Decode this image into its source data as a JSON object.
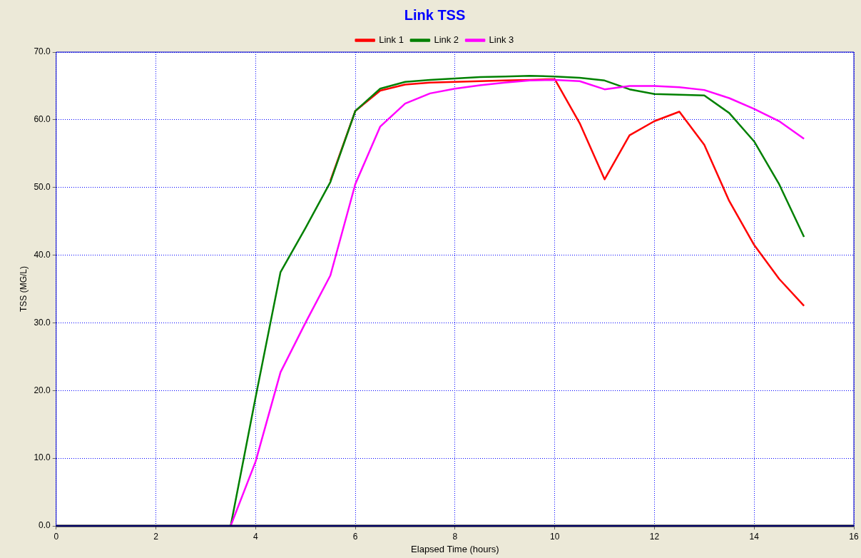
{
  "chart_data": {
    "type": "line",
    "title": "Link TSS",
    "xlabel": "Elapsed Time (hours)",
    "ylabel": "TSS (MG/L)",
    "series": [
      {
        "name": "Link 1",
        "color": "#ff0000",
        "x": [
          5.5,
          6,
          6.5,
          7,
          7.5,
          8,
          8.5,
          9,
          9.5,
          10,
          10.5,
          11,
          11.5,
          12,
          12.5,
          13,
          13.5,
          14,
          14.5,
          15
        ],
        "values": [
          51,
          61.3,
          64.3,
          65.2,
          65.5,
          65.6,
          65.7,
          65.8,
          65.9,
          66,
          59.5,
          51.2,
          57.7,
          59.8,
          61.2,
          56.3,
          48,
          41.5,
          36.5,
          32.5
        ]
      },
      {
        "name": "Link 2",
        "color": "#008000",
        "x": [
          3.5,
          4,
          4.5,
          5,
          5.5,
          6,
          6.5,
          7,
          7.5,
          8,
          8.5,
          9,
          9.5,
          10,
          10.5,
          11,
          11.5,
          12,
          12.5,
          13,
          13.5,
          14,
          14.5,
          15
        ],
        "values": [
          0,
          19,
          37.5,
          44,
          50.8,
          61.3,
          64.6,
          65.6,
          65.9,
          66.1,
          66.3,
          66.4,
          66.5,
          66.4,
          66.2,
          65.8,
          64.5,
          63.8,
          63.7,
          63.6,
          61,
          56.8,
          50.5,
          42.7
        ]
      },
      {
        "name": "Link 3",
        "color": "#ff00ff",
        "x": [
          3.5,
          4,
          4.5,
          5,
          5.5,
          6,
          6.5,
          7,
          7.5,
          8,
          8.5,
          9,
          9.5,
          10,
          10.5,
          11,
          11.5,
          12,
          12.5,
          13,
          13.5,
          14,
          14.5,
          15
        ],
        "values": [
          0,
          9.5,
          22.7,
          30,
          37,
          50.5,
          59,
          62.4,
          63.9,
          64.6,
          65.1,
          65.5,
          65.8,
          65.9,
          65.7,
          64.5,
          65,
          65,
          64.8,
          64.4,
          63.2,
          61.6,
          59.8,
          57.2
        ]
      }
    ],
    "xlim": [
      0,
      16
    ],
    "xticks": [
      0,
      2,
      4,
      6,
      8,
      10,
      12,
      14,
      16
    ],
    "ylim": [
      0,
      70
    ],
    "yticks": [
      {
        "value": 0,
        "label": "0.0"
      },
      {
        "value": 10,
        "label": "10.0"
      },
      {
        "value": 20,
        "label": "20.0"
      },
      {
        "value": 30,
        "label": "30.0"
      },
      {
        "value": 40,
        "label": "40.0"
      },
      {
        "value": 50,
        "label": "50.0"
      },
      {
        "value": 60,
        "label": "60.0"
      },
      {
        "value": 70,
        "label": "70.0"
      }
    ],
    "grid": true,
    "legend": "top",
    "marker": "none",
    "line_style": "solid"
  }
}
